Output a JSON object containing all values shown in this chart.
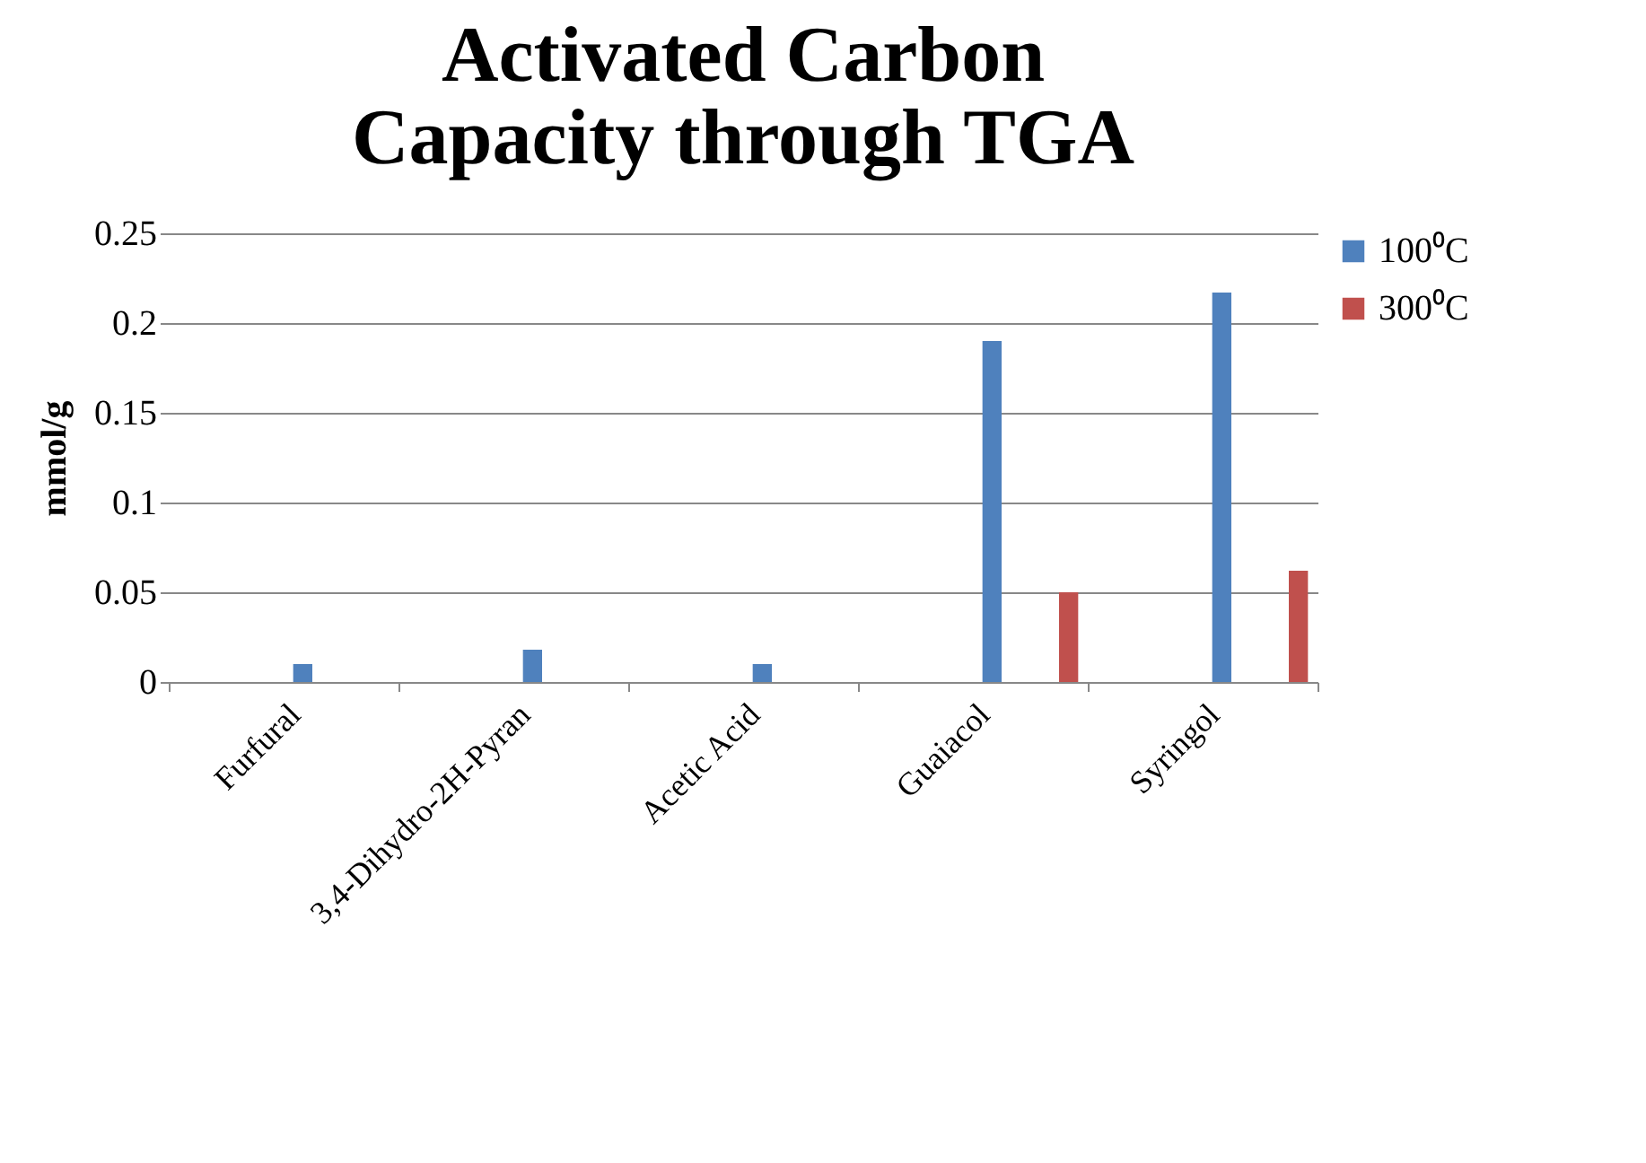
{
  "chart_data": {
    "type": "bar",
    "title": "Activated Carbon Capacity through TGA",
    "ylabel": "mmol/g",
    "categories": [
      "Furfural",
      "3,4-Dihydro-2H-Pyran",
      "Acetic Acid",
      "Guaiacol",
      "Syringol"
    ],
    "series": [
      {
        "name": "100⁰C",
        "color": "#4f81bd",
        "values": [
          0.01,
          0.018,
          0.01,
          0.19,
          0.217
        ]
      },
      {
        "name": "300⁰C",
        "color": "#c0504d",
        "values": [
          0,
          0,
          0,
          0.05,
          0.062
        ]
      }
    ],
    "ylim": [
      0,
      0.25
    ],
    "yticks": [
      0,
      0.05,
      0.1,
      0.15,
      0.2,
      0.25
    ],
    "grid": "y",
    "legend": "right"
  }
}
